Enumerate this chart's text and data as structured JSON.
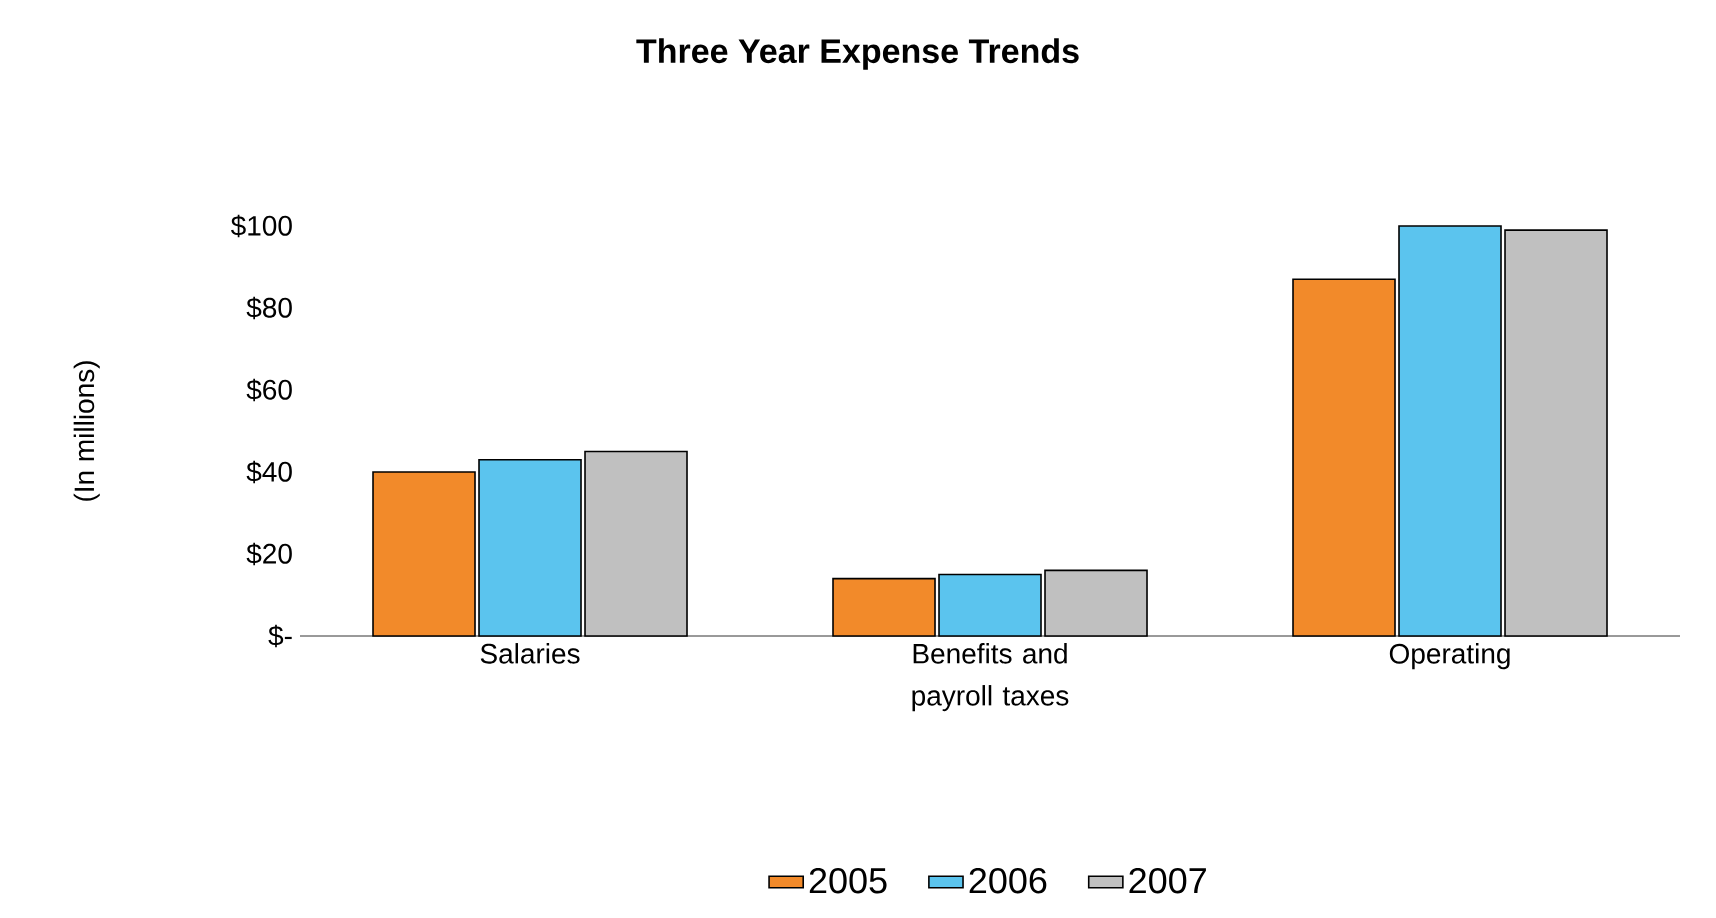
{
  "chart_data": {
    "type": "bar",
    "title": "Three Year Expense Trends",
    "ylabel": "(In millions)",
    "categories": [
      "Salaries",
      "Benefits and payroll taxes",
      "Operating"
    ],
    "series": [
      {
        "name": "2005",
        "color": "#f28a2a",
        "values": [
          40,
          14,
          87
        ]
      },
      {
        "name": "2006",
        "color": "#5bc4ee",
        "values": [
          43,
          15,
          100
        ]
      },
      {
        "name": "2007",
        "color": "#c0c0c0",
        "values": [
          45,
          16,
          99
        ]
      }
    ],
    "ylim": [
      0,
      100
    ],
    "yticks": [
      {
        "value": 0,
        "label": "$-"
      },
      {
        "value": 20,
        "label": "$20"
      },
      {
        "value": 40,
        "label": "$40"
      },
      {
        "value": 60,
        "label": "$60"
      },
      {
        "value": 80,
        "label": "$80"
      },
      {
        "value": 100,
        "label": "$100"
      }
    ],
    "legend": "bottom"
  }
}
